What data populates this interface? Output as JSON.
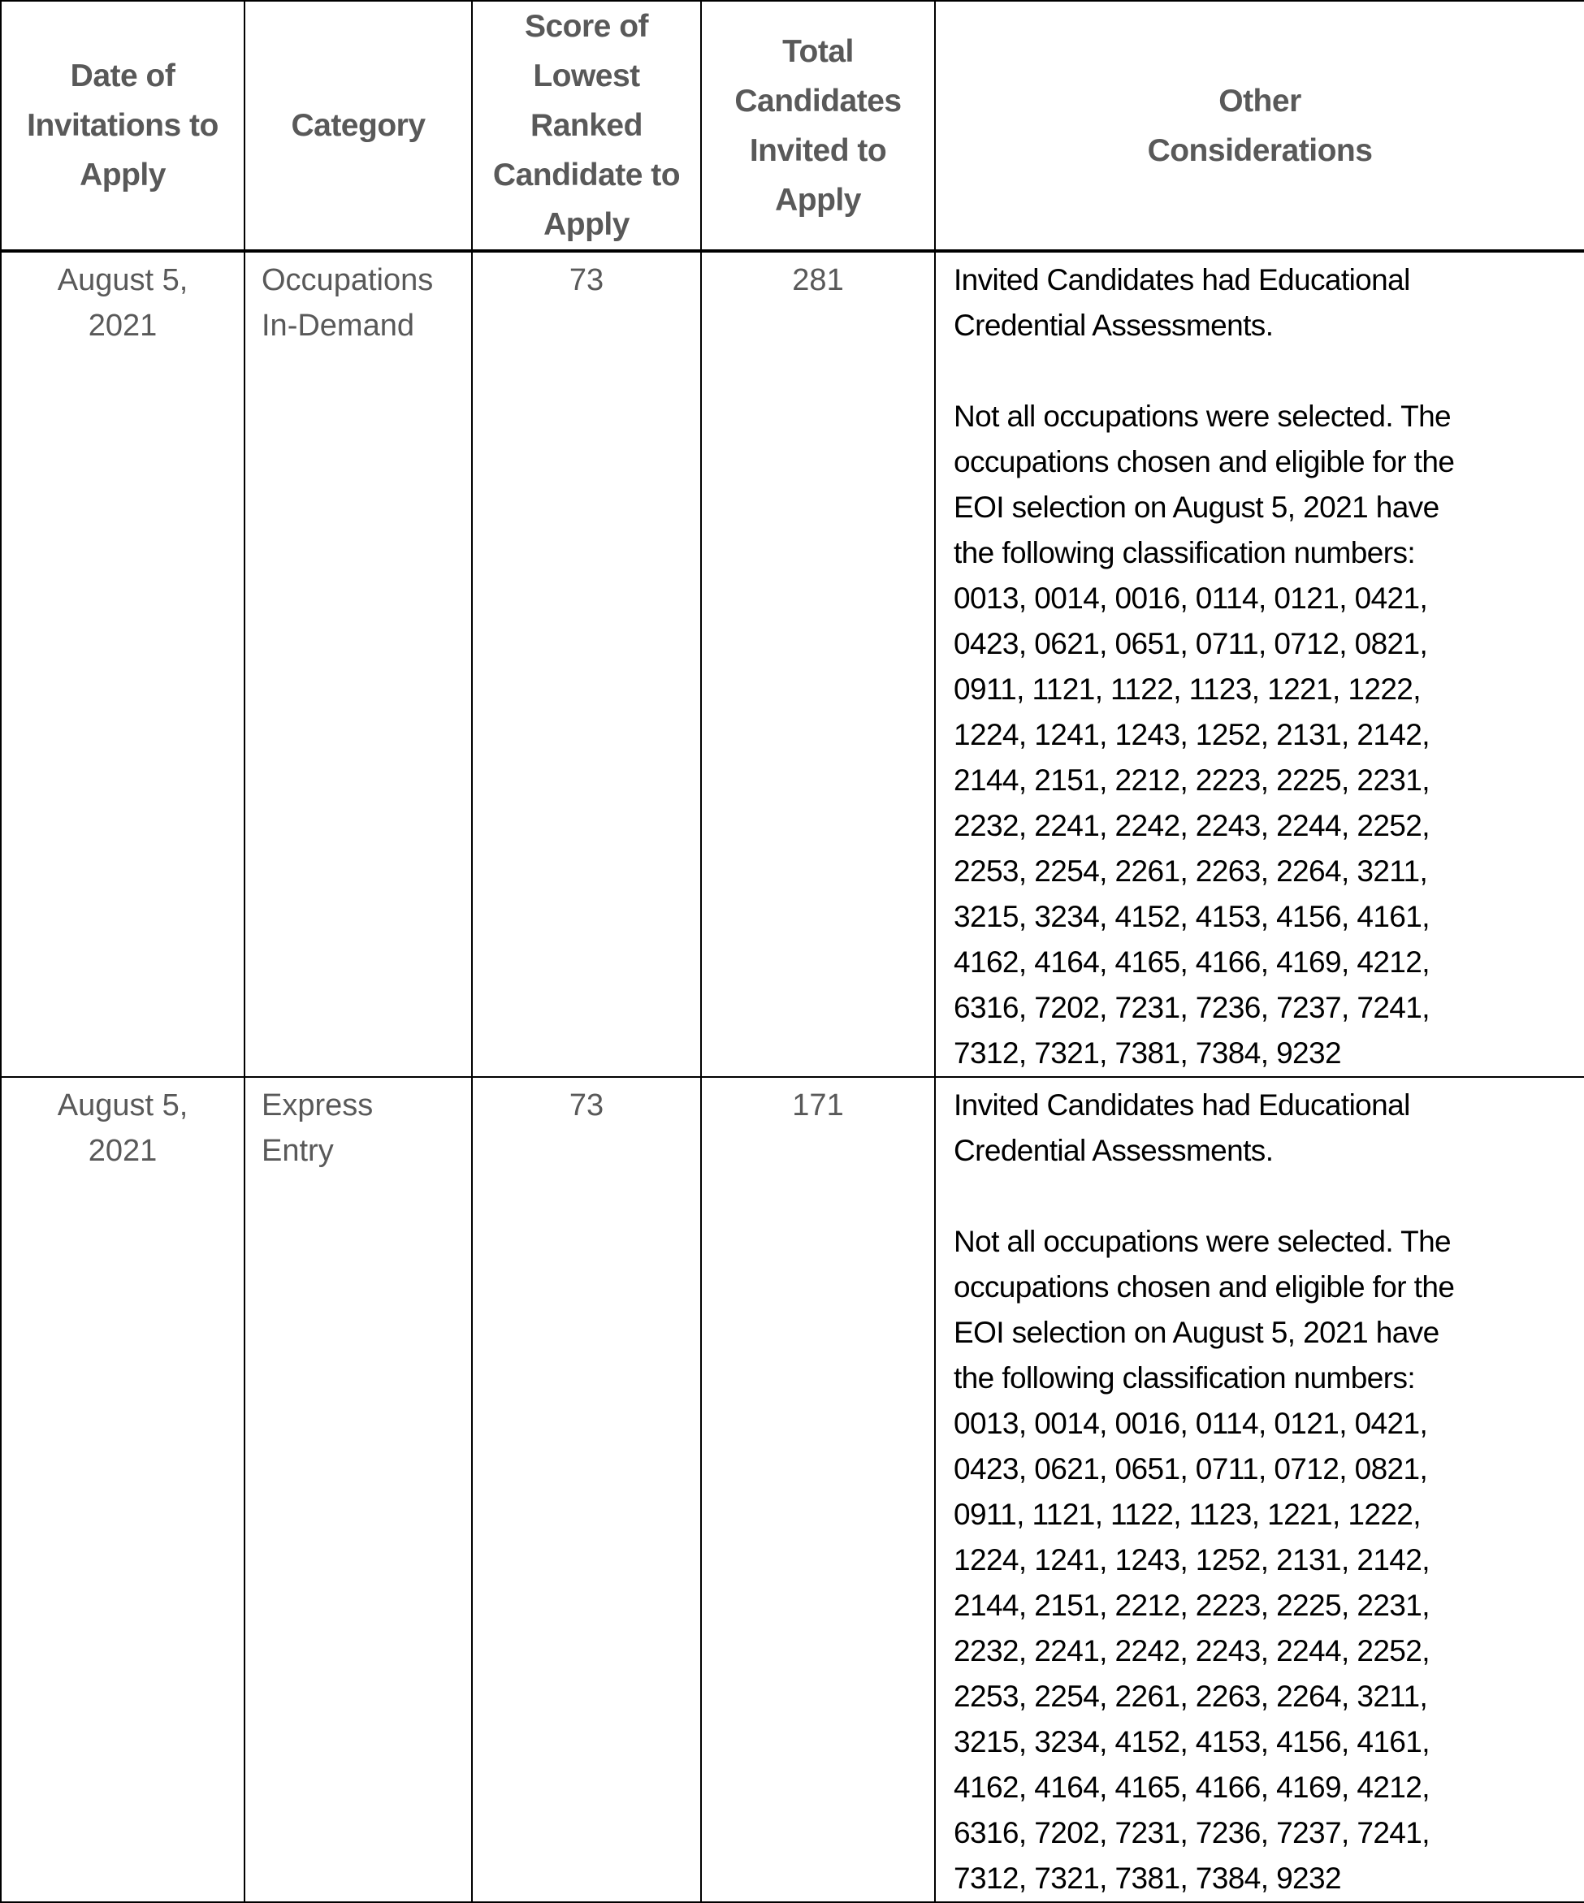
{
  "headers": {
    "date": "Date of Invitations to Apply",
    "category": "Category",
    "score": "Score of Lowest Ranked Candidate to Apply",
    "total": "Total Candidates Invited to Apply",
    "other": "Other Considerations"
  },
  "rows": [
    {
      "date": "August 5, 2021",
      "category": "Occupations In-Demand",
      "score": "73",
      "total": "281",
      "other_p1": "Invited Candidates had Educational\nCredential Assessments.",
      "other_p2": "Not all occupations were selected. The\noccupations chosen and eligible for the\nEOI selection on August 5, 2021 have\nthe following classification numbers:\n0013, 0014, 0016, 0114, 0121, 0421,\n0423, 0621, 0651, 0711, 0712, 0821,\n0911, 1121, 1122, 1123, 1221, 1222,\n1224, 1241, 1243, 1252, 2131, 2142,\n2144, 2151, 2212, 2223, 2225, 2231,\n2232, 2241, 2242, 2243, 2244, 2252,\n2253, 2254, 2261, 2263, 2264, 3211,\n3215, 3234, 4152, 4153, 4156, 4161,\n4162, 4164, 4165, 4166, 4169, 4212,\n6316, 7202, 7231, 7236, 7237, 7241,\n7312, 7321, 7381, 7384, 9232"
    },
    {
      "date": "August 5, 2021",
      "category": "Express Entry",
      "score": "73",
      "total": "171",
      "other_p1": "Invited Candidates had Educational\nCredential Assessments.",
      "other_p2": "Not all occupations were selected. The\noccupations chosen and eligible for the\nEOI selection on August 5, 2021 have\nthe following classification numbers:\n0013, 0014, 0016, 0114, 0121, 0421,\n0423, 0621, 0651, 0711, 0712, 0821,\n0911, 1121, 1122, 1123, 1221, 1222,\n1224, 1241, 1243, 1252, 2131, 2142,\n2144, 2151, 2212, 2223, 2225, 2231,\n2232, 2241, 2242, 2243, 2244, 2252,\n2253, 2254, 2261, 2263, 2264, 3211,\n3215, 3234, 4152, 4153, 4156, 4161,\n4162, 4164, 4165, 4166, 4169, 4212,\n6316, 7202, 7231, 7236, 7237, 7241,\n7312, 7321, 7381, 7384, 9232"
    }
  ]
}
